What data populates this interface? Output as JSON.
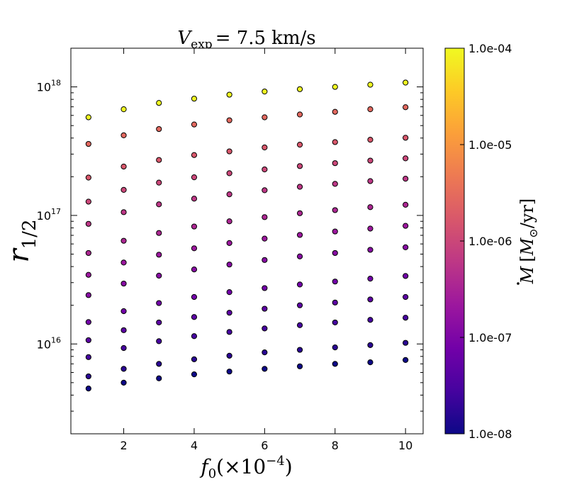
{
  "chart_data": {
    "type": "scatter",
    "title": {
      "symbol": "V",
      "subscript": "exp",
      "relation": "= 7.5",
      "unit": "km/s"
    },
    "xlabel": {
      "symbol": "f",
      "subscript": "0",
      "factor": "(×10",
      "exponent": "−4",
      "close": ")"
    },
    "ylabel": {
      "symbol": "r",
      "subscript": "1/2"
    },
    "xlim": [
      0.5,
      10.5
    ],
    "ylim": [
      2000000000000000.0,
      2e+18
    ],
    "yscale": "log",
    "x_ticks": [
      2,
      4,
      6,
      8,
      10
    ],
    "y_ticks": [
      {
        "value": 1e+16,
        "base": "10",
        "exp": "16"
      },
      {
        "value": 1e+17,
        "base": "10",
        "exp": "17"
      },
      {
        "value": 1e+18,
        "base": "10",
        "exp": "18"
      }
    ],
    "grid": false,
    "x": [
      1,
      2,
      3,
      4,
      5,
      6,
      7,
      8,
      9,
      10
    ],
    "mdot_levels": [
      1e-08,
      1.67e-08,
      2.78e-08,
      4.64e-08,
      7.74e-08,
      1.29e-07,
      2.15e-07,
      3.59e-07,
      5.99e-07,
      1e-06,
      1.67e-06,
      2.78e-06,
      4.64e-06,
      7.74e-06,
      1.29e-05,
      2.15e-05,
      3.59e-05,
      0.0001
    ],
    "series": [
      {
        "mdot": 1e-08,
        "y": [
          4500000000000000.0,
          5000000000000000.0,
          5400000000000000.0,
          5800000000000000.0,
          6100000000000000.0,
          6400000000000000.0,
          6700000000000000.0,
          7000000000000000.0,
          7200000000000000.0,
          7500000000000000.0
        ]
      },
      {
        "mdot": 1.67e-08,
        "y": [
          5600000000000000.0,
          6400000000000000.0,
          7000000000000000.0,
          7600000000000000.0,
          8100000000000000.0,
          8600000000000000.0,
          9000000000000000.0,
          9400000000000000.0,
          9800000000000000.0,
          1.02e+16
        ]
      },
      {
        "mdot": 2.78e-08,
        "y": [
          7900000000000000.0,
          9300000000000000.0,
          1.05e+16,
          1.15e+16,
          1.24e+16,
          1.32e+16,
          1.4e+16,
          1.47e+16,
          1.54e+16,
          1.6e+16
        ]
      },
      {
        "mdot": 4.64e-08,
        "y": [
          1.07e+16,
          1.28e+16,
          1.47e+16,
          1.62e+16,
          1.75e+16,
          1.88e+16,
          2e+16,
          2.1e+16,
          2.22e+16,
          2.32e+16
        ]
      },
      {
        "mdot": 7.74e-08,
        "y": [
          1.48e+16,
          1.8e+16,
          2.08e+16,
          2.32e+16,
          2.53e+16,
          2.72e+16,
          2.9e+16,
          3.06e+16,
          3.22e+16,
          3.38e+16
        ]
      },
      {
        "mdot": 1.29e-07,
        "y": [
          2.4e+16,
          2.95e+16,
          3.4e+16,
          3.8e+16,
          4.15e+16,
          4.5e+16,
          4.8e+16,
          5.1e+16,
          5.4e+16,
          5.65e+16
        ]
      },
      {
        "mdot": 2.15e-07,
        "y": [
          3.45e+16,
          4.3e+16,
          4.95e+16,
          5.55e+16,
          6.1e+16,
          6.6e+16,
          7.05e+16,
          7.5e+16,
          7.9e+16,
          8.3e+16
        ]
      },
      {
        "mdot": 3.59e-07,
        "y": [
          5.1e+16,
          6.35e+16,
          7.3e+16,
          8.2e+16,
          9e+16,
          9.7e+16,
          1.04e+17,
          1.1e+17,
          1.16e+17,
          1.21e+17
        ]
      },
      {
        "mdot": 5.99e-07,
        "y": [
          8.6e+16,
          1.06e+17,
          1.22e+17,
          1.35e+17,
          1.46e+17,
          1.57e+17,
          1.67e+17,
          1.76e+17,
          1.85e+17,
          1.93e+17
        ]
      },
      {
        "mdot": 1e-06,
        "y": [
          1.28e+17,
          1.58e+17,
          1.8e+17,
          1.98e+17,
          2.13e+17,
          2.28e+17,
          2.42e+17,
          2.55e+17,
          2.67e+17,
          2.78e+17
        ]
      },
      {
        "mdot": 1.67e-06,
        "y": [
          1.97e+17,
          2.4e+17,
          2.7e+17,
          2.95e+17,
          3.15e+17,
          3.38e+17,
          3.55e+17,
          3.72e+17,
          3.88e+17,
          4.02e+17
        ]
      },
      {
        "mdot": 2.78e-06,
        "y": [
          3.6e+17,
          4.2e+17,
          4.7e+17,
          5.1e+17,
          5.5e+17,
          5.8e+17,
          6.1e+17,
          6.4e+17,
          6.7e+17,
          6.95e+17
        ]
      },
      {
        "mdot": 0.0001,
        "y": [
          5.8e+17,
          6.7e+17,
          7.5e+17,
          8.1e+17,
          8.7e+17,
          9.2e+17,
          9.6e+17,
          1e+18,
          1.04e+18,
          1.08e+18
        ]
      }
    ],
    "colorbar": {
      "label": {
        "symbol": "M",
        "unit_open": "[",
        "unit_symbol": "M",
        "unit_subscript": "⊙",
        "unit_close": "/yr]"
      },
      "scale": "log",
      "range": [
        1e-08,
        0.0001
      ],
      "ticks": [
        "1.0e-08",
        "1.0e-07",
        "1.0e-06",
        "1.0e-05",
        "1.0e-04"
      ],
      "colormap": "plasma",
      "stops": [
        "#0d0887",
        "#46039f",
        "#7201a8",
        "#9c179e",
        "#bd3786",
        "#d8576b",
        "#ed7953",
        "#fb9f3a",
        "#fdca26",
        "#f0f921"
      ]
    }
  }
}
